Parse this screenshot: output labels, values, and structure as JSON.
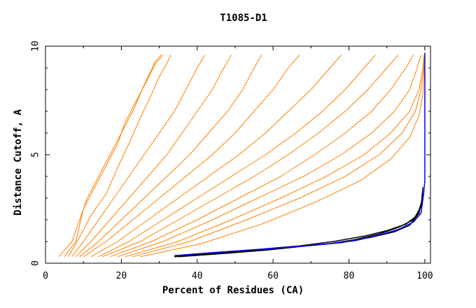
{
  "chart_data": {
    "type": "line",
    "title": "T1085-D1",
    "xlabel": "Percent of Residues (CA)",
    "ylabel": "Distance Cutoff, A",
    "xlim": [
      0,
      101.5
    ],
    "ylim": [
      0,
      10
    ],
    "xticks": [
      "0",
      "20",
      "40",
      "60",
      "80",
      "100"
    ],
    "yticks": [
      "0",
      "5",
      "10"
    ],
    "grid": false,
    "colors": {
      "orange": "#ff8000",
      "black": "#000000",
      "blue": "#0000ff"
    },
    "series": [
      {
        "color": "#ff8000",
        "x": [
          3.5,
          7,
          9,
          11,
          14,
          17,
          20,
          23,
          25,
          27,
          29,
          30.5
        ],
        "y": [
          0.3,
          1.0,
          2.0,
          3.0,
          4.0,
          5.0,
          6.0,
          7.0,
          7.8,
          8.6,
          9.3,
          9.6
        ]
      },
      {
        "color": "#ff8000",
        "x": [
          5,
          8,
          10,
          13,
          16,
          19,
          21,
          24,
          27,
          29,
          31
        ],
        "y": [
          0.3,
          1.0,
          2.5,
          3.5,
          4.5,
          5.5,
          6.5,
          7.5,
          8.5,
          9.2,
          9.6
        ]
      },
      {
        "color": "#ff8000",
        "x": [
          6,
          9,
          12,
          16,
          19,
          22,
          25,
          28,
          30,
          32,
          33
        ],
        "y": [
          0.3,
          1.2,
          2.2,
          3.2,
          4.4,
          5.5,
          6.7,
          7.8,
          8.6,
          9.2,
          9.6
        ]
      },
      {
        "color": "#ff8000",
        "x": [
          7,
          10,
          14,
          18,
          22,
          26,
          30,
          34,
          37,
          40,
          42
        ],
        "y": [
          0.3,
          1.0,
          2.0,
          3.0,
          4.0,
          5.0,
          6.0,
          7.0,
          8.0,
          9.0,
          9.6
        ]
      },
      {
        "color": "#ff8000",
        "x": [
          8,
          12,
          17,
          22,
          27,
          32,
          36,
          40,
          44,
          47,
          49
        ],
        "y": [
          0.3,
          1.0,
          2.0,
          3.0,
          4.0,
          5.0,
          6.0,
          7.0,
          8.0,
          9.0,
          9.6
        ]
      },
      {
        "color": "#ff8000",
        "x": [
          9,
          14,
          20,
          26,
          32,
          38,
          43,
          48,
          52,
          55,
          57
        ],
        "y": [
          0.3,
          1.0,
          2.0,
          3.0,
          4.0,
          5.0,
          6.0,
          7.0,
          8.0,
          9.0,
          9.6
        ]
      },
      {
        "color": "#ff8000",
        "x": [
          10,
          16,
          23,
          30,
          37,
          44,
          50,
          55,
          60,
          64,
          67
        ],
        "y": [
          0.3,
          1.0,
          2.0,
          3.0,
          4.0,
          5.0,
          6.0,
          7.0,
          8.0,
          9.0,
          9.6
        ]
      },
      {
        "color": "#ff8000",
        "x": [
          12,
          19,
          27,
          35,
          43,
          51,
          58,
          64,
          70,
          75,
          78
        ],
        "y": [
          0.3,
          1.0,
          2.0,
          3.0,
          4.0,
          5.0,
          6.0,
          7.0,
          8.0,
          9.0,
          9.6
        ]
      },
      {
        "color": "#ff8000",
        "x": [
          14,
          22,
          31,
          40,
          49,
          58,
          66,
          73,
          79,
          84,
          87
        ],
        "y": [
          0.3,
          1.0,
          2.0,
          3.0,
          4.0,
          5.0,
          6.0,
          7.0,
          8.0,
          9.0,
          9.6
        ]
      },
      {
        "color": "#ff8000",
        "x": [
          15,
          25,
          35,
          45,
          55,
          64,
          72,
          79,
          85,
          90,
          93
        ],
        "y": [
          0.3,
          1.0,
          2.0,
          3.0,
          4.0,
          5.0,
          6.0,
          7.0,
          8.0,
          9.0,
          9.6
        ]
      },
      {
        "color": "#ff8000",
        "x": [
          17,
          28,
          40,
          51,
          62,
          71,
          79,
          86,
          91,
          95,
          97
        ],
        "y": [
          0.3,
          1.0,
          2.0,
          3.0,
          4.0,
          5.0,
          6.0,
          7.0,
          8.0,
          9.0,
          9.6
        ]
      },
      {
        "color": "#ff8000",
        "x": [
          19,
          31,
          44,
          56,
          68,
          78,
          86,
          92,
          96,
          98,
          99
        ],
        "y": [
          0.3,
          1.0,
          2.0,
          3.0,
          4.0,
          5.0,
          6.0,
          7.0,
          8.0,
          9.0,
          9.6
        ]
      },
      {
        "color": "#ff8000",
        "x": [
          21,
          35,
          49,
          62,
          74,
          84,
          91,
          96,
          98.5,
          99.5,
          99.8
        ],
        "y": [
          0.3,
          1.0,
          2.0,
          3.0,
          4.0,
          5.0,
          6.0,
          7.0,
          8.0,
          9.0,
          9.6
        ]
      },
      {
        "color": "#ff8000",
        "x": [
          23,
          38,
          53,
          67,
          79,
          88,
          94,
          97.5,
          99,
          99.7,
          99.9
        ],
        "y": [
          0.3,
          1.0,
          2.0,
          3.0,
          4.0,
          5.0,
          6.0,
          7.0,
          8.0,
          9.0,
          9.6
        ]
      },
      {
        "color": "#ff8000",
        "x": [
          25,
          41,
          57,
          71,
          83,
          91,
          96,
          98.5,
          99.5,
          99.8,
          100
        ],
        "y": [
          0.3,
          0.9,
          1.8,
          2.8,
          3.8,
          4.8,
          5.8,
          6.8,
          7.8,
          8.8,
          9.6
        ]
      },
      {
        "color": "#000000",
        "x": [
          34,
          45,
          55,
          65,
          75,
          82,
          88,
          93,
          97,
          99,
          99.5
        ],
        "y": [
          0.3,
          0.45,
          0.6,
          0.75,
          0.9,
          1.1,
          1.35,
          1.65,
          2.0,
          2.6,
          3.5
        ]
      },
      {
        "color": "#000000",
        "x": [
          34,
          46,
          57,
          67,
          76,
          84,
          90,
          95,
          98,
          99.5
        ],
        "y": [
          0.3,
          0.5,
          0.65,
          0.8,
          1.0,
          1.25,
          1.5,
          1.8,
          2.2,
          3.0
        ]
      },
      {
        "color": "#000000",
        "x": [
          35,
          47,
          58,
          68,
          78,
          86,
          92,
          96,
          98.5,
          99.6
        ],
        "y": [
          0.3,
          0.45,
          0.6,
          0.78,
          0.95,
          1.2,
          1.45,
          1.75,
          2.3,
          3.2
        ]
      },
      {
        "color": "#0000ff",
        "x": [
          34,
          45,
          55,
          65,
          74,
          82,
          88,
          93,
          97,
          99,
          99.7,
          100,
          100,
          100
        ],
        "y": [
          0.35,
          0.5,
          0.62,
          0.75,
          0.88,
          1.05,
          1.3,
          1.55,
          1.9,
          2.3,
          3.2,
          3.8,
          6.0,
          9.7
        ]
      }
    ]
  }
}
